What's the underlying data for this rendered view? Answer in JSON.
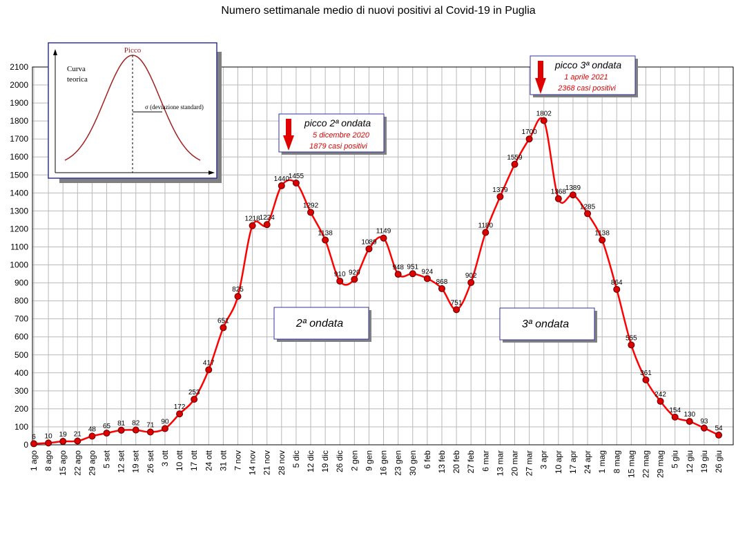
{
  "chart_data": {
    "type": "line",
    "title": "Numero settimanale medio di nuovi positivi al Covid-19 in Puglia",
    "xlabel": "",
    "ylabel": "",
    "ylim": [
      0,
      2100
    ],
    "ytick_step": 100,
    "grid": true,
    "categories": [
      "1 ago",
      "8 ago",
      "15 ago",
      "22 ago",
      "29 ago",
      "5 set",
      "12 set",
      "19 set",
      "26 set",
      "3 ott",
      "10 ott",
      "17 ott",
      "24 ott",
      "31 ott",
      "7 nov",
      "14 nov",
      "21 nov",
      "28 nov",
      "5 dic",
      "12 dic",
      "19 dic",
      "26 dic",
      "2 gen",
      "9 gen",
      "16 gen",
      "23 gen",
      "30 gen",
      "6 feb",
      "13 feb",
      "20 feb",
      "27 feb",
      "6 mar",
      "13 mar",
      "20 mar",
      "27 mar",
      "3 apr",
      "10 apr",
      "17 apr",
      "24 apr",
      "1 mag",
      "8 mag",
      "15 mag",
      "22 mag",
      "29 mag",
      "5 giu",
      "12 giu",
      "19 giu",
      "26 giu"
    ],
    "values": [
      6,
      10,
      19,
      21,
      48,
      65,
      81,
      82,
      71,
      90,
      172,
      253,
      417,
      651,
      825,
      1218,
      1224,
      1440,
      1455,
      1292,
      1138,
      910,
      920,
      1089,
      1149,
      948,
      951,
      924,
      868,
      751,
      902,
      1180,
      1379,
      1559,
      1700,
      1802,
      1368,
      1389,
      1285,
      1138,
      864,
      555,
      361,
      242,
      154,
      130,
      93,
      54
    ],
    "line_color": "#ff0000",
    "marker_color": "#dd0000"
  },
  "annotations": {
    "peak2": {
      "title": "picco 2ª ondata",
      "date": "5 dicembre 2020",
      "cases": "1879 casi positivi"
    },
    "peak3": {
      "title": "picco 3ª ondata",
      "date": "1 aprile 2021",
      "cases": "2368 casi positivi"
    },
    "wave2": "2ª ondata",
    "wave3": "3ª ondata"
  },
  "inset": {
    "peak_label": "Picco",
    "curve_label_1": "Curva",
    "curve_label_2": "teorica",
    "sigma_label": "σ  (deviazione standard)"
  }
}
